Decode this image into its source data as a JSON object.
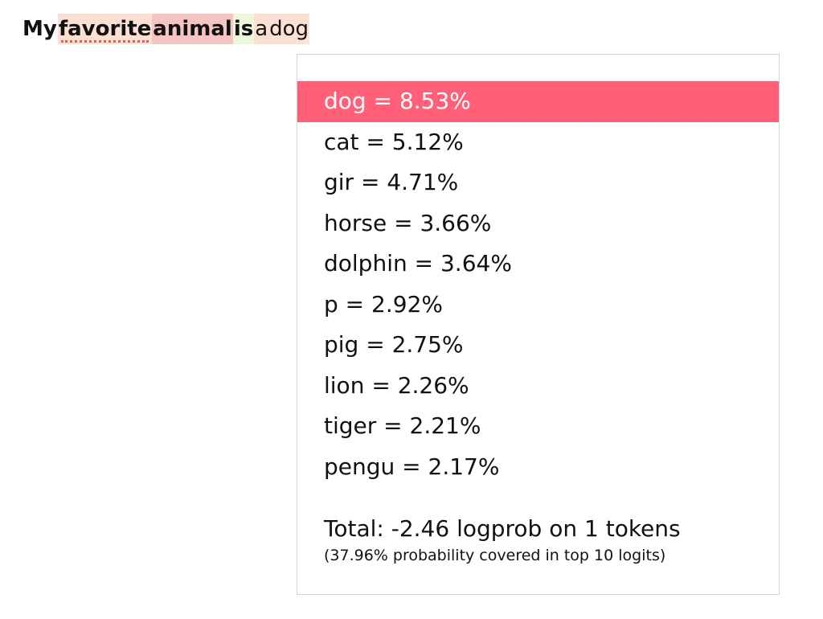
{
  "sentence": {
    "tokens": [
      {
        "text": "My",
        "bg": "#ffffff",
        "bold": true,
        "underline": false
      },
      {
        "text": "favorite",
        "bg": "#fde0d4",
        "bold": true,
        "underline": true
      },
      {
        "text": "animal",
        "bg": "#f7c4c4",
        "bold": true,
        "underline": false
      },
      {
        "text": "is",
        "bg": "#eef7d9",
        "bold": true,
        "underline": false
      },
      {
        "text": "a",
        "bg": "#fde0d4",
        "bold": false,
        "underline": false
      },
      {
        "text": "dog",
        "bg": "#fde0d4",
        "bold": false,
        "underline": false
      }
    ]
  },
  "popup": {
    "options": [
      {
        "label": "dog = 8.53%",
        "selected": true
      },
      {
        "label": "cat = 5.12%",
        "selected": false
      },
      {
        "label": "gir = 4.71%",
        "selected": false
      },
      {
        "label": "horse = 3.66%",
        "selected": false
      },
      {
        "label": "dolphin = 3.64%",
        "selected": false
      },
      {
        "label": "p = 2.92%",
        "selected": false
      },
      {
        "label": "pig = 2.75%",
        "selected": false
      },
      {
        "label": "lion = 2.26%",
        "selected": false
      },
      {
        "label": "tiger = 2.21%",
        "selected": false
      },
      {
        "label": "pengu = 2.17%",
        "selected": false
      }
    ],
    "selected_color": "#ff6077",
    "total": "Total: -2.46 logprob on 1 tokens",
    "covered": "(37.96% probability covered in top 10 logits)"
  }
}
